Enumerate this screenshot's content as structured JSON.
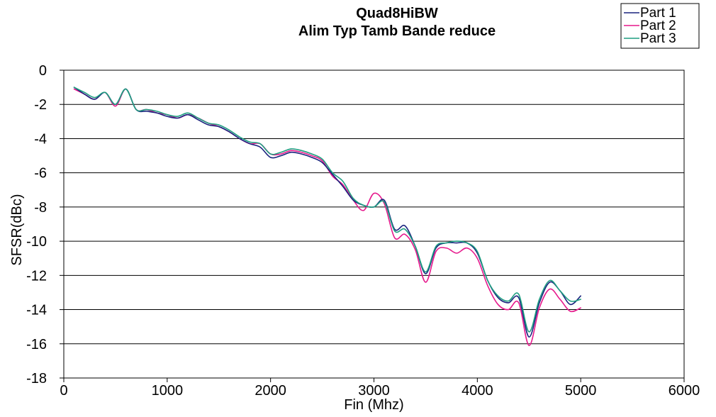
{
  "chart_data": {
    "type": "line",
    "title": [
      "Quad8HiBW",
      "Alim Typ Tamb Bande reduce"
    ],
    "xlabel": "Fin (Mhz)",
    "ylabel": "SFSR(dBc)",
    "xlim": [
      0,
      6000
    ],
    "ylim": [
      -18,
      0
    ],
    "xticks": [
      "0",
      "1000",
      "2000",
      "3000",
      "4000",
      "5000",
      "6000"
    ],
    "yticks": [
      "0",
      "-2",
      "-4",
      "-6",
      "-8",
      "-10",
      "-12",
      "-14",
      "-16",
      "-18"
    ],
    "grid": "horizontal",
    "legend_position": "top-right",
    "x": [
      100,
      200,
      300,
      400,
      500,
      600,
      700,
      800,
      900,
      1000,
      1100,
      1200,
      1300,
      1400,
      1500,
      1600,
      1700,
      1800,
      1900,
      2000,
      2100,
      2200,
      2300,
      2400,
      2500,
      2600,
      2700,
      2800,
      2900,
      3000,
      3100,
      3200,
      3300,
      3400,
      3500,
      3600,
      3700,
      3800,
      3900,
      4000,
      4100,
      4200,
      4300,
      4400,
      4500,
      4600,
      4700,
      4800,
      4900,
      5000
    ],
    "series": [
      {
        "name": "Part 1",
        "color": "#1a237e",
        "values": [
          -1.0,
          -1.4,
          -1.7,
          -1.3,
          -2.0,
          -1.1,
          -2.3,
          -2.4,
          -2.5,
          -2.7,
          -2.8,
          -2.6,
          -2.9,
          -3.2,
          -3.3,
          -3.6,
          -4.0,
          -4.3,
          -4.5,
          -5.1,
          -5.0,
          -4.8,
          -4.9,
          -5.1,
          -5.4,
          -6.1,
          -6.8,
          -7.6,
          -7.9,
          -8.0,
          -7.6,
          -9.3,
          -9.1,
          -10.3,
          -11.9,
          -10.4,
          -10.1,
          -10.1,
          -10.1,
          -10.7,
          -12.3,
          -13.3,
          -13.6,
          -13.3,
          -15.6,
          -13.6,
          -12.4,
          -12.9,
          -13.7,
          -13.2
        ]
      },
      {
        "name": "Part 2",
        "color": "#e6198c",
        "values": [
          -1.1,
          -1.4,
          -1.7,
          -1.3,
          -2.1,
          -1.1,
          -2.3,
          -2.3,
          -2.5,
          -2.6,
          -2.8,
          -2.6,
          -2.8,
          -3.1,
          -3.3,
          -3.6,
          -4.0,
          -4.3,
          -4.3,
          -4.9,
          -4.9,
          -4.7,
          -4.8,
          -5.0,
          -5.3,
          -6.2,
          -6.7,
          -7.6,
          -8.2,
          -7.2,
          -7.8,
          -9.8,
          -9.6,
          -10.5,
          -12.4,
          -10.6,
          -10.4,
          -10.7,
          -10.4,
          -11.0,
          -12.6,
          -13.7,
          -14.0,
          -13.6,
          -16.1,
          -13.9,
          -12.8,
          -13.4,
          -14.1,
          -13.9
        ]
      },
      {
        "name": "Part 3",
        "color": "#1e9e80",
        "values": [
          -1.0,
          -1.3,
          -1.6,
          -1.3,
          -2.0,
          -1.1,
          -2.3,
          -2.3,
          -2.4,
          -2.6,
          -2.7,
          -2.5,
          -2.8,
          -3.1,
          -3.2,
          -3.5,
          -3.9,
          -4.2,
          -4.3,
          -4.9,
          -4.8,
          -4.6,
          -4.7,
          -4.9,
          -5.2,
          -6.0,
          -6.5,
          -7.5,
          -7.9,
          -8.0,
          -7.7,
          -9.4,
          -9.3,
          -10.3,
          -11.8,
          -10.3,
          -10.1,
          -10.0,
          -10.1,
          -10.6,
          -12.3,
          -13.2,
          -13.5,
          -13.1,
          -15.3,
          -13.4,
          -12.3,
          -12.9,
          -13.5,
          -13.4
        ]
      }
    ]
  }
}
